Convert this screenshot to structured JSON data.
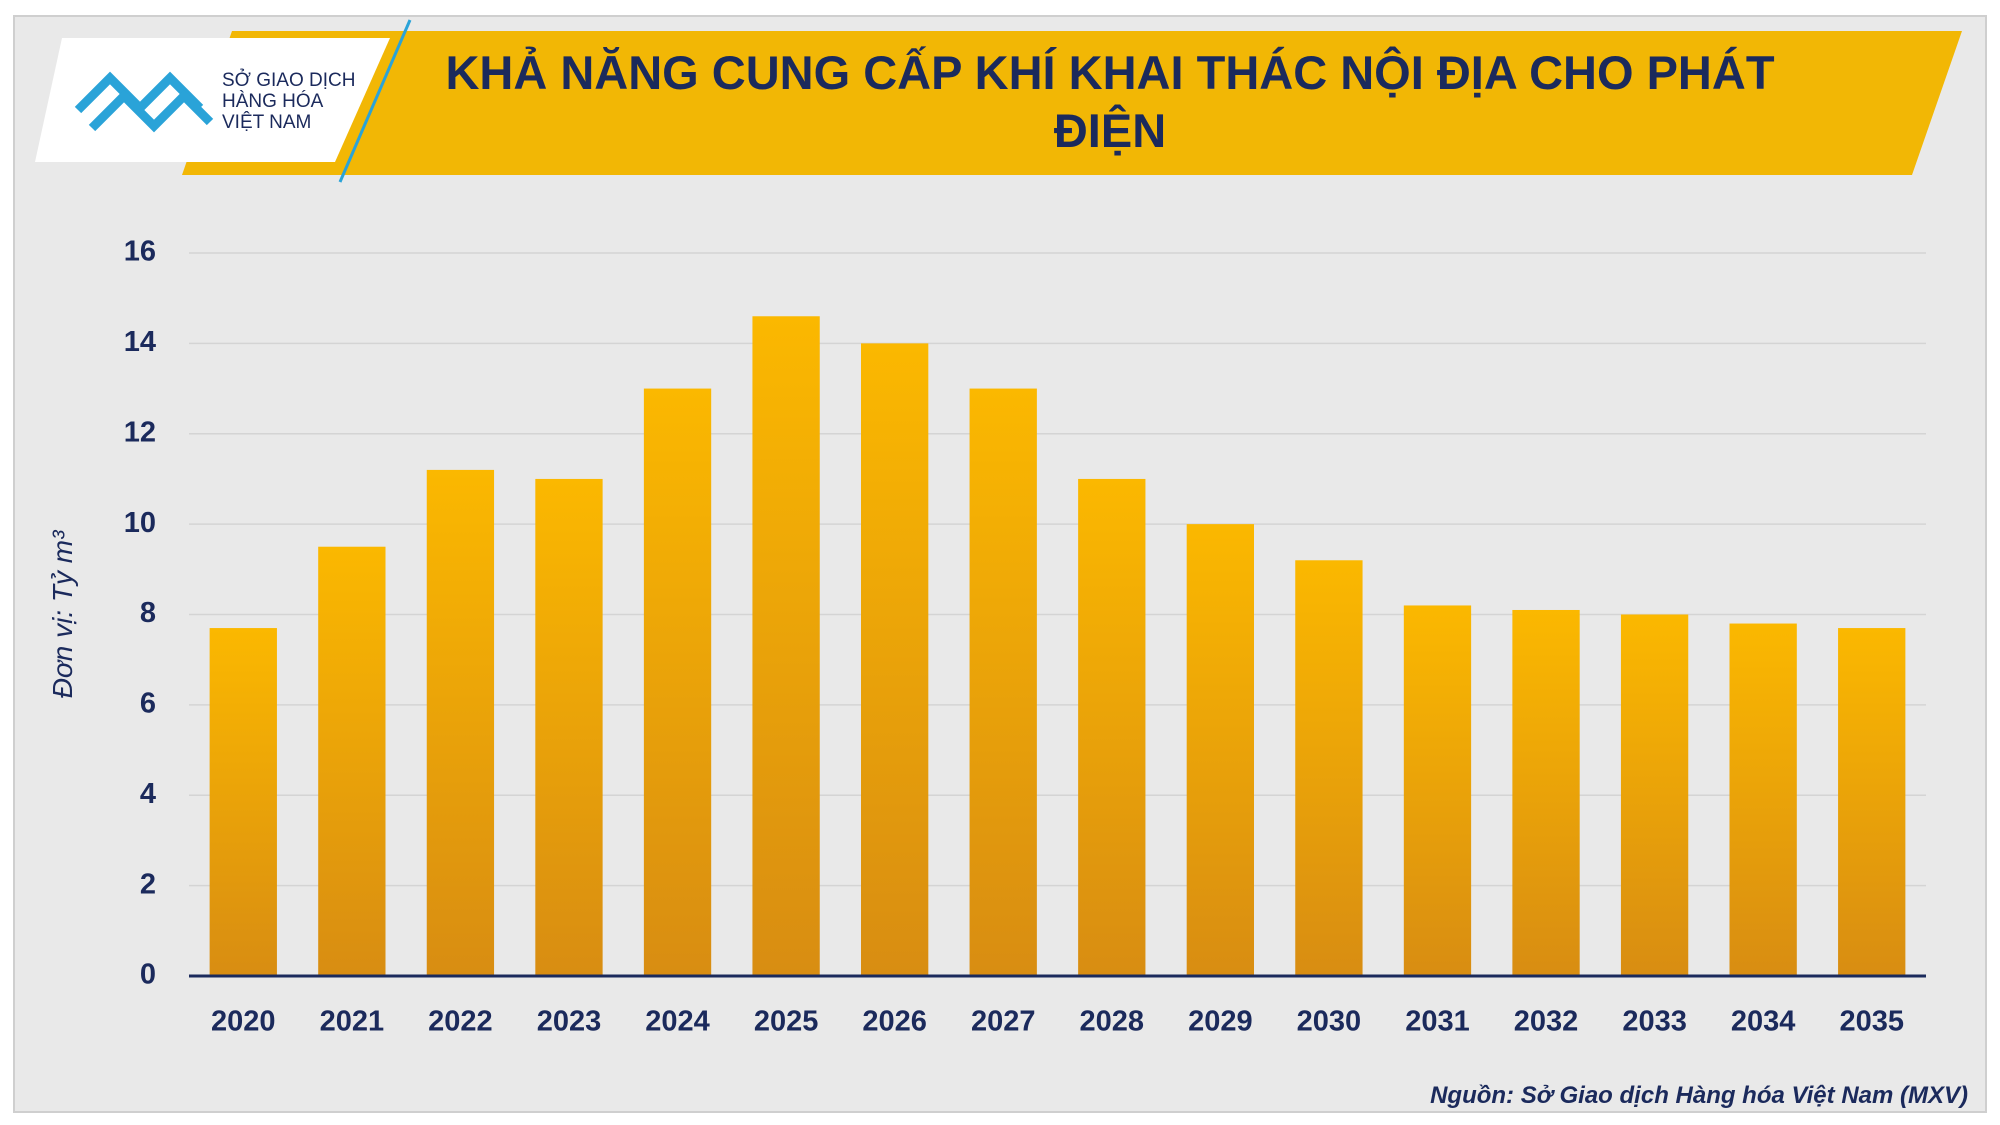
{
  "logo": {
    "lines": [
      "SỞ GIAO DỊCH",
      "HÀNG HÓA",
      "VIỆT NAM"
    ]
  },
  "source": "Nguồn: Sở Giao dịch Hàng hóa Việt Nam (MXV)",
  "chart_data": {
    "type": "bar",
    "title": "KHẢ NĂNG CUNG CẤP KHÍ KHAI THÁC NỘI ĐỊA CHO PHÁT ĐIỆN",
    "y_label": "Đơn vị: Tỷ m³",
    "categories": [
      "2020",
      "2021",
      "2022",
      "2023",
      "2024",
      "2025",
      "2026",
      "2027",
      "2028",
      "2029",
      "2030",
      "2031",
      "2032",
      "2033",
      "2034",
      "2035"
    ],
    "values": [
      7.7,
      9.5,
      11.2,
      11.0,
      13.0,
      14.6,
      14.0,
      13.0,
      11.0,
      10.0,
      9.2,
      8.2,
      8.1,
      8.0,
      7.8,
      7.7
    ],
    "color": "#fbb800",
    "ylim": [
      0,
      16
    ],
    "yticks": [
      0,
      2,
      4,
      6,
      8,
      10,
      12,
      14,
      16
    ],
    "grid": true
  }
}
